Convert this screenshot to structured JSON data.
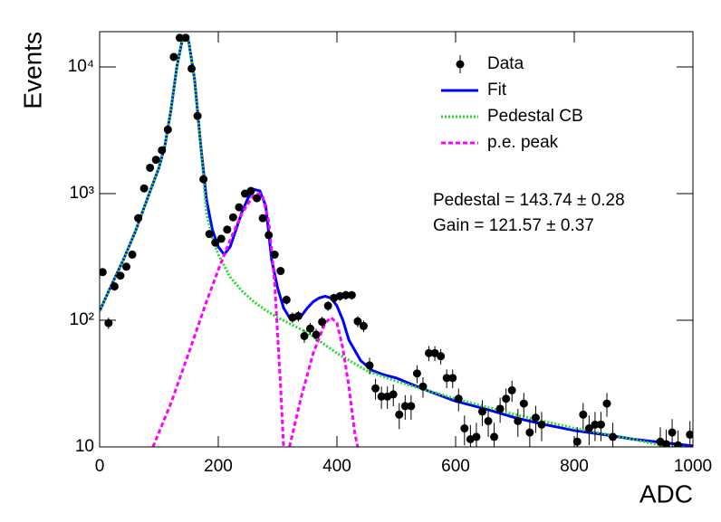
{
  "chart_data": {
    "type": "scatter",
    "xlabel": "ADC",
    "ylabel": "Events",
    "xlim": [
      0,
      1000
    ],
    "ylim": [
      10,
      19000
    ],
    "log_y": true,
    "xticks": [
      0,
      200,
      400,
      600,
      800,
      1000
    ],
    "yticks": [
      10,
      {
        "value": 100,
        "label": "10²"
      },
      {
        "value": 1000,
        "label": "10³"
      },
      {
        "value": 10000,
        "label": "10⁴"
      }
    ],
    "annotations": [
      "Pedestal = 143.74 ± 0.28",
      "Gain = 121.57 ± 0.37"
    ],
    "series": [
      {
        "name": "Data",
        "type": "scatter",
        "color": "#000000",
        "x": [
          5,
          15,
          25,
          35,
          45,
          55,
          65,
          75,
          85,
          95,
          105,
          115,
          125,
          135,
          145,
          155,
          165,
          175,
          185,
          195,
          205,
          215,
          225,
          235,
          245,
          255,
          265,
          275,
          285,
          295,
          305,
          315,
          325,
          335,
          345,
          355,
          365,
          375,
          385,
          395,
          405,
          415,
          425,
          435,
          445,
          455,
          465,
          475,
          485,
          495,
          505,
          515,
          525,
          535,
          545,
          555,
          565,
          575,
          585,
          595,
          605,
          615,
          625,
          635,
          645,
          655,
          665,
          675,
          685,
          695,
          705,
          715,
          725,
          735,
          745,
          755,
          765,
          775,
          785,
          795,
          805,
          815,
          825,
          835,
          845,
          855,
          865,
          875,
          885,
          895,
          905,
          915,
          925,
          935,
          945,
          955,
          965,
          975,
          985,
          995
        ],
        "values": [
          240,
          95,
          185,
          225,
          265,
          330,
          640,
          1100,
          1600,
          1850,
          2200,
          3200,
          12000,
          17000,
          17000,
          9700,
          4100,
          1300,
          480,
          410,
          440,
          520,
          650,
          780,
          1000,
          1050,
          920,
          640,
          470,
          330,
          245,
          145,
          105,
          108,
          75,
          86,
          77,
          97,
          130,
          150,
          155,
          158,
          158,
          98,
          90,
          44,
          29,
          25,
          25,
          26,
          18,
          21,
          21,
          38,
          30,
          55,
          55,
          52,
          35,
          35,
          24,
          14,
          11.5,
          12,
          19,
          16,
          12,
          20,
          24,
          28,
          16,
          22,
          13,
          17,
          15,
          null,
          null,
          null,
          null,
          null,
          11,
          18,
          14,
          15,
          15,
          22,
          12,
          null,
          null,
          null,
          null,
          null,
          null,
          null,
          11,
          10.5,
          13,
          10.3,
          null,
          12.5
        ],
        "errors": [
          15.5,
          9.7,
          13.6,
          15,
          16.3,
          18.2,
          25,
          33,
          40,
          43,
          47,
          57,
          110,
          130,
          130,
          98,
          64,
          36,
          22,
          20,
          21,
          23,
          25.5,
          28,
          32,
          32,
          30,
          25,
          22,
          18,
          16,
          12,
          10,
          10.4,
          8.7,
          9.3,
          8.8,
          9.8,
          11.4,
          12.2,
          12.4,
          12.6,
          12.6,
          9.9,
          9.5,
          6.6,
          5.4,
          5,
          5,
          5.1,
          4.2,
          4.6,
          4.6,
          6.2,
          5.5,
          7.4,
          7.4,
          7.2,
          5.9,
          5.9,
          4.9,
          3.7,
          3.4,
          3.5,
          4.4,
          4,
          3.5,
          4.5,
          4.9,
          5.3,
          4,
          4.7,
          3.6,
          4.1,
          3.9,
          null,
          null,
          null,
          null,
          null,
          3.3,
          4.2,
          3.7,
          3.9,
          3.9,
          4.7,
          3.5,
          null,
          null,
          null,
          null,
          null,
          null,
          null,
          3.3,
          3.2,
          3.6,
          3.2,
          null,
          3.5
        ]
      },
      {
        "name": "Fit",
        "type": "line",
        "color": "#0000ff",
        "dash": "solid",
        "x": [
          0,
          20,
          40,
          60,
          80,
          100,
          110,
          120,
          130,
          140,
          150,
          160,
          170,
          180,
          190,
          200,
          210,
          220,
          230,
          240,
          250,
          260,
          270,
          280,
          290,
          300,
          310,
          320,
          330,
          340,
          350,
          360,
          370,
          380,
          390,
          400,
          410,
          420,
          440,
          460,
          480,
          500,
          520,
          560,
          600,
          650,
          700,
          750,
          800,
          850,
          900,
          950,
          1000
        ],
        "values": [
          118,
          190,
          300,
          500,
          900,
          1600,
          2400,
          4500,
          10000,
          17000,
          16000,
          8000,
          2500,
          900,
          520,
          380,
          330,
          380,
          520,
          720,
          920,
          1080,
          1050,
          800,
          300,
          180,
          125,
          105,
          103,
          108,
          125,
          140,
          150,
          155,
          150,
          130,
          100,
          70,
          48,
          40,
          37,
          35,
          32,
          27,
          23,
          20,
          17,
          15,
          13.5,
          12.5,
          11.5,
          10.8,
          10.2
        ]
      },
      {
        "name": "Pedestal CB",
        "type": "line",
        "color": "#22dd22",
        "dash": "dotted",
        "x": [
          0,
          20,
          40,
          60,
          80,
          100,
          110,
          120,
          130,
          140,
          150,
          160,
          170,
          180,
          190,
          200,
          220,
          240,
          260,
          280,
          300,
          350,
          400,
          450,
          500,
          600,
          700,
          800,
          900,
          950,
          1000
        ],
        "values": [
          118,
          190,
          300,
          500,
          900,
          1600,
          2400,
          4500,
          10000,
          17000,
          16000,
          8000,
          2500,
          700,
          450,
          330,
          220,
          170,
          140,
          120,
          105,
          80,
          55,
          40,
          33,
          24,
          18,
          14,
          11.5,
          10.2,
          9.8
        ]
      },
      {
        "name": "p.e. peak",
        "type": "line",
        "color": "#ff00ff",
        "dash": "dashed",
        "x": [
          90,
          120,
          150,
          180,
          200,
          220,
          240,
          260,
          270,
          275,
          285,
          295,
          305,
          310,
          315,
          320,
          340,
          360,
          380,
          390,
          400,
          410,
          420,
          430,
          435
        ],
        "values": [
          10,
          22,
          55,
          140,
          250,
          430,
          700,
          980,
          1000,
          950,
          600,
          200,
          30,
          10,
          null,
          10,
          25,
          55,
          95,
          105,
          95,
          60,
          30,
          13,
          10
        ]
      }
    ]
  }
}
